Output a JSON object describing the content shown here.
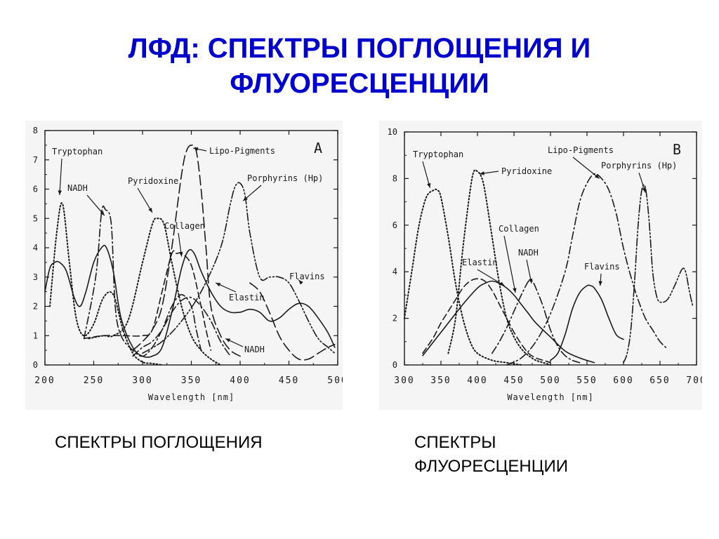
{
  "title": {
    "line1": "ЛФД: СПЕКТРЫ ПОГЛОЩЕНИЯ И",
    "line2": "ФЛУОРЕСЦЕНЦИИ"
  },
  "captions": {
    "left": "СПЕКТРЫ ПОГЛОЩЕНИЯ",
    "right": "СПЕКТРЫ ФЛУОРЕСЦЕНЦИИ"
  },
  "colors": {
    "title": "#0000cc",
    "ink": "#1a1a1a",
    "panel": "#f5f5f5"
  },
  "chart_data": [
    {
      "type": "line",
      "panel_letter": "A",
      "xlabel": "Wavelength [nm]",
      "ylabel": "",
      "xlim": [
        200,
        500
      ],
      "ylim": [
        0,
        8
      ],
      "x_ticks": [
        "200",
        "250",
        "300",
        "350",
        "400",
        "450",
        "500"
      ],
      "y_ticks": [
        "0",
        "1",
        "2",
        "3",
        "4",
        "5",
        "6",
        "7",
        "8"
      ],
      "series": [
        {
          "name": "Tryptophan",
          "style": "dotted",
          "x": [
            205,
            212,
            218,
            225,
            232,
            240,
            250,
            260,
            270,
            280,
            290,
            300,
            310,
            320
          ],
          "y": [
            2.0,
            4.5,
            5.5,
            3.5,
            1.6,
            1.0,
            1.4,
            2.3,
            2.4,
            1.2,
            0.4,
            0.1,
            0.05,
            0.0
          ]
        },
        {
          "name": "NADH",
          "style": "dash-dot",
          "x": [
            240,
            252,
            258,
            262,
            268,
            272,
            278,
            290,
            300,
            310,
            320,
            330,
            340,
            350,
            355,
            360
          ],
          "y": [
            0.9,
            3.0,
            5.2,
            5.3,
            4.8,
            2.0,
            1.0,
            0.5,
            0.3,
            0.6,
            1.2,
            2.0,
            2.4,
            2.0,
            1.2,
            0.5
          ]
        },
        {
          "name": "Pyridoxine",
          "style": "dotted",
          "x": [
            245,
            260,
            270,
            285,
            300,
            310,
            315,
            322,
            330,
            340,
            350,
            360,
            370,
            380
          ],
          "y": [
            0.9,
            1.0,
            1.0,
            1.5,
            3.5,
            4.8,
            5.0,
            4.8,
            3.5,
            2.0,
            1.0,
            0.5,
            0.2,
            0.0
          ]
        },
        {
          "name": "Lipo-Pigments",
          "style": "long-dash",
          "x": [
            290,
            300,
            310,
            320,
            330,
            340,
            345,
            350,
            355,
            360,
            365,
            370,
            380,
            390,
            400
          ],
          "y": [
            0.5,
            0.8,
            1.2,
            2.0,
            4.0,
            6.5,
            7.3,
            7.5,
            7.3,
            6.0,
            4.0,
            2.0,
            1.0,
            0.5,
            0.3
          ]
        },
        {
          "name": "Collagen",
          "style": "dashed",
          "x": [
            240,
            260,
            280,
            300,
            310,
            320,
            330,
            335,
            340,
            350,
            360,
            365,
            370
          ],
          "y": [
            0.9,
            1.0,
            1.0,
            1.0,
            1.2,
            2.5,
            3.8,
            3.8,
            3.8,
            3.4,
            2.0,
            1.2,
            0.5
          ]
        },
        {
          "name": "Elastin",
          "style": "solid",
          "x": [
            200,
            205,
            210,
            215,
            222,
            230,
            236,
            242,
            250,
            258,
            263,
            270,
            278,
            290,
            300,
            310,
            320,
            330,
            340,
            347,
            353,
            360,
            370,
            380,
            390,
            400,
            410,
            420,
            430,
            440,
            450,
            460,
            470,
            480,
            490,
            497
          ],
          "y": [
            2.5,
            3.3,
            3.5,
            3.5,
            3.2,
            2.3,
            2.0,
            2.5,
            3.5,
            4.0,
            4.0,
            3.2,
            1.6,
            0.6,
            0.3,
            0.3,
            0.6,
            1.8,
            3.3,
            3.9,
            3.8,
            3.2,
            2.5,
            2.0,
            1.8,
            1.8,
            1.9,
            1.8,
            1.5,
            1.6,
            1.9,
            2.1,
            2.0,
            1.6,
            1.1,
            0.6
          ]
        },
        {
          "name": "NADH (2)",
          "style": "dash-dot",
          "x": [
            290,
            300,
            310,
            320,
            330,
            340,
            350,
            360,
            370,
            380,
            390
          ],
          "y": [
            0.3,
            0.6,
            0.8,
            1.2,
            1.8,
            2.2,
            2.3,
            2.0,
            1.5,
            0.8,
            0.3
          ]
        },
        {
          "name": "Porphyrins (Hp)",
          "style": "dash-dot-dot",
          "x": [
            300,
            320,
            340,
            360,
            380,
            390,
            395,
            400,
            405,
            410,
            420,
            430,
            440,
            450,
            460,
            470,
            480,
            490,
            497
          ],
          "y": [
            0.4,
            0.8,
            1.5,
            2.5,
            4.0,
            5.5,
            6.1,
            6.2,
            5.8,
            4.5,
            3.0,
            3.0,
            3.0,
            2.8,
            2.2,
            1.5,
            0.9,
            0.6,
            0.4
          ]
        },
        {
          "name": "Flavins",
          "style": "long-dash",
          "x": [
            410,
            420,
            430,
            440,
            450,
            460,
            470,
            480,
            490,
            497
          ],
          "y": [
            2.8,
            2.5,
            1.8,
            1.0,
            0.5,
            0.2,
            0.2,
            0.4,
            0.6,
            0.7
          ]
        }
      ],
      "annotations": [
        {
          "text": "Tryptophan",
          "target": "Tryptophan"
        },
        {
          "text": "NADH",
          "target": "NADH"
        },
        {
          "text": "Pyridoxine",
          "target": "Pyridoxine"
        },
        {
          "text": "Lipo-Pigments",
          "target": "Lipo-Pigments"
        },
        {
          "text": "Porphyrins (Hp)",
          "target": "Porphyrins (Hp)"
        },
        {
          "text": "Collagen",
          "target": "Collagen"
        },
        {
          "text": "Elastin",
          "target": "Elastin"
        },
        {
          "text": "Flavins",
          "target": "Flavins"
        },
        {
          "text": "NADH",
          "target": "NADH (2)"
        }
      ]
    },
    {
      "type": "line",
      "panel_letter": "B",
      "xlabel": "Wavelength [nm]",
      "ylabel": "",
      "xlim": [
        300,
        700
      ],
      "ylim": [
        0,
        10
      ],
      "x_ticks": [
        "300",
        "350",
        "400",
        "450",
        "500",
        "550",
        "600",
        "650",
        "700"
      ],
      "y_ticks": [
        "0",
        "2",
        "4",
        "6",
        "8",
        "10"
      ],
      "series": [
        {
          "name": "Tryptophan",
          "style": "dotted",
          "x": [
            300,
            310,
            320,
            330,
            340,
            345,
            350,
            360,
            370,
            380,
            390,
            400,
            420,
            440,
            460
          ],
          "y": [
            2.0,
            4.0,
            6.0,
            7.2,
            7.5,
            7.5,
            7.2,
            5.5,
            3.5,
            2.0,
            1.0,
            0.5,
            0.2,
            0.1,
            0.0
          ]
        },
        {
          "name": "Pyridoxine",
          "style": "dotted",
          "x": [
            360,
            370,
            380,
            390,
            395,
            400,
            405,
            410,
            420,
            430,
            440,
            450,
            460,
            470,
            480,
            490,
            500
          ],
          "y": [
            0.5,
            2.0,
            5.0,
            7.5,
            8.3,
            8.3,
            8.1,
            7.5,
            5.5,
            3.5,
            2.0,
            1.2,
            0.7,
            0.4,
            0.2,
            0.1,
            0.0
          ]
        },
        {
          "name": "Elastin",
          "style": "dashed",
          "x": [
            325,
            340,
            350,
            360,
            370,
            380,
            390,
            400,
            410,
            420,
            430,
            440,
            450,
            460,
            470,
            480,
            490,
            500
          ],
          "y": [
            0.5,
            1.2,
            1.8,
            2.3,
            2.8,
            3.3,
            3.6,
            3.7,
            3.6,
            3.2,
            2.6,
            2.0,
            1.4,
            0.9,
            0.5,
            0.3,
            0.2,
            0.1
          ]
        },
        {
          "name": "Collagen",
          "style": "solid",
          "x": [
            325,
            340,
            360,
            380,
            400,
            410,
            420,
            430,
            440,
            450,
            460,
            470,
            480,
            500,
            520,
            540,
            560
          ],
          "y": [
            0.4,
            1.0,
            1.8,
            2.6,
            3.3,
            3.5,
            3.6,
            3.5,
            3.3,
            3.0,
            2.6,
            2.2,
            1.8,
            1.2,
            0.6,
            0.3,
            0.1
          ]
        },
        {
          "name": "NADH",
          "style": "dash-dot",
          "x": [
            420,
            430,
            440,
            450,
            460,
            470,
            475,
            480,
            490,
            500,
            510,
            520,
            530,
            540
          ],
          "y": [
            0.5,
            1.0,
            1.6,
            2.3,
            3.0,
            3.6,
            3.6,
            3.3,
            2.5,
            1.5,
            0.8,
            0.4,
            0.2,
            0.1
          ]
        },
        {
          "name": "Flavins",
          "style": "solid",
          "x": [
            500,
            510,
            520,
            530,
            540,
            550,
            555,
            560,
            570,
            580,
            590,
            600
          ],
          "y": [
            0.2,
            0.5,
            1.3,
            2.4,
            3.1,
            3.4,
            3.4,
            3.3,
            2.8,
            2.0,
            1.3,
            1.1
          ]
        },
        {
          "name": "Lipo-Pigments",
          "style": "dash-dot",
          "x": [
            440,
            460,
            480,
            500,
            520,
            530,
            540,
            550,
            560,
            570,
            580,
            590,
            600,
            610,
            620,
            630,
            640,
            650,
            660
          ],
          "y": [
            0.0,
            0.3,
            1.0,
            2.2,
            4.0,
            5.5,
            7.0,
            7.8,
            8.2,
            8.0,
            7.5,
            6.5,
            5.0,
            3.8,
            2.8,
            2.0,
            1.5,
            1.0,
            0.7
          ]
        },
        {
          "name": "Porphyrins (Hp)",
          "style": "dash-dot-dot",
          "x": [
            600,
            605,
            610,
            615,
            620,
            625,
            630,
            635,
            640,
            645,
            650,
            660,
            670,
            680,
            685,
            690,
            695
          ],
          "y": [
            0.1,
            0.5,
            1.5,
            3.5,
            6.0,
            7.5,
            7.6,
            6.2,
            4.0,
            3.0,
            2.7,
            2.8,
            3.4,
            4.1,
            4.0,
            3.2,
            2.5
          ]
        }
      ],
      "annotations": [
        {
          "text": "Tryptophan",
          "target": "Tryptophan"
        },
        {
          "text": "Pyridoxine",
          "target": "Pyridoxine"
        },
        {
          "text": "Lipo-Pigments",
          "target": "Lipo-Pigments"
        },
        {
          "text": "Porphyrins (Hp)",
          "target": "Porphyrins (Hp)"
        },
        {
          "text": "Collagen",
          "target": "Collagen"
        },
        {
          "text": "Elastin",
          "target": "Elastin"
        },
        {
          "text": "NADH",
          "target": "NADH"
        },
        {
          "text": "Flavins",
          "target": "Flavins"
        }
      ]
    }
  ]
}
